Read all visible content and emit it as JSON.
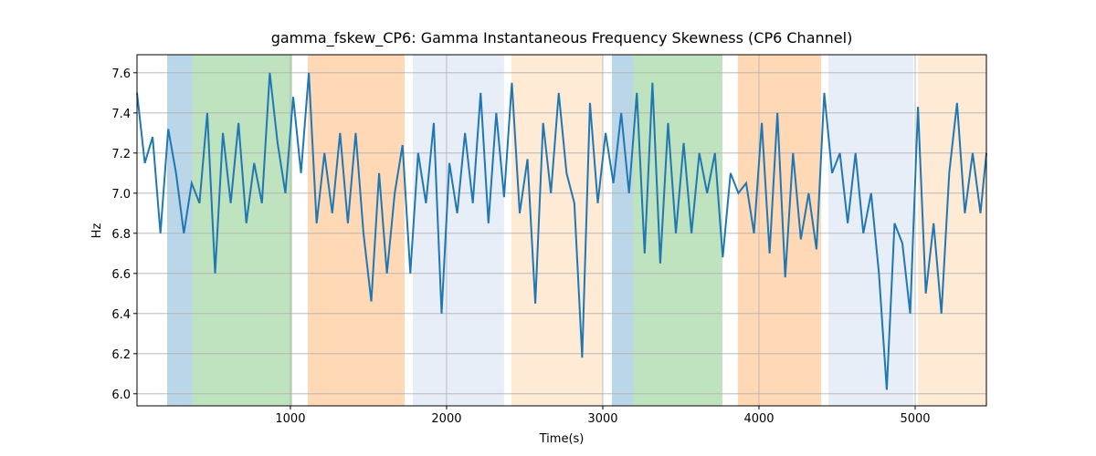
{
  "chart_data": {
    "type": "line",
    "title": "gamma_fskew_CP6: Gamma Instantaneous Frequency Skewness (CP6 Channel)",
    "x_label": "Time(s)",
    "y_label": "Hz",
    "x": [
      18,
      68,
      118,
      168,
      218,
      268,
      318,
      368,
      418,
      468,
      518,
      568,
      618,
      668,
      718,
      768,
      818,
      868,
      918,
      968,
      1018,
      1068,
      1118,
      1168,
      1218,
      1268,
      1318,
      1368,
      1418,
      1468,
      1518,
      1568,
      1618,
      1668,
      1718,
      1768,
      1818,
      1868,
      1918,
      1968,
      2018,
      2068,
      2118,
      2168,
      2218,
      2268,
      2318,
      2368,
      2418,
      2468,
      2518,
      2568,
      2618,
      2668,
      2718,
      2768,
      2818,
      2868,
      2918,
      2968,
      3018,
      3068,
      3118,
      3168,
      3218,
      3268,
      3318,
      3368,
      3418,
      3468,
      3518,
      3568,
      3618,
      3668,
      3718,
      3768,
      3818,
      3868,
      3918,
      3968,
      4018,
      4068,
      4118,
      4168,
      4218,
      4268,
      4318,
      4368,
      4418,
      4468,
      4518,
      4568,
      4618,
      4668,
      4718,
      4768,
      4818,
      4868,
      4918,
      4968,
      5018,
      5068,
      5118,
      5168,
      5218,
      5268,
      5318,
      5368,
      5418,
      5456
    ],
    "series": [
      {
        "name": "gamma_fskew_CP6",
        "color": "#1f77b4",
        "values": [
          7.5,
          7.15,
          7.28,
          6.8,
          7.32,
          7.1,
          6.8,
          7.05,
          6.95,
          7.4,
          6.6,
          7.3,
          6.95,
          7.35,
          6.85,
          7.15,
          6.95,
          7.6,
          7.25,
          7.0,
          7.48,
          7.1,
          7.6,
          6.85,
          7.2,
          6.9,
          7.3,
          6.85,
          7.3,
          6.8,
          6.46,
          7.1,
          6.6,
          7.0,
          7.24,
          6.6,
          7.2,
          6.95,
          7.35,
          6.4,
          7.15,
          6.9,
          7.3,
          6.95,
          7.5,
          6.85,
          7.4,
          6.98,
          7.55,
          6.9,
          7.17,
          6.45,
          7.35,
          7.0,
          7.5,
          7.1,
          6.95,
          6.18,
          7.45,
          6.95,
          7.3,
          7.05,
          7.4,
          7.0,
          7.5,
          6.7,
          7.55,
          6.65,
          7.35,
          6.8,
          7.25,
          6.8,
          7.2,
          7.0,
          7.2,
          6.68,
          7.1,
          7.0,
          7.05,
          6.8,
          7.35,
          6.7,
          7.4,
          6.58,
          7.2,
          6.77,
          7.0,
          6.72,
          7.5,
          7.1,
          7.2,
          6.85,
          7.2,
          6.8,
          7.0,
          6.6,
          6.02,
          6.85,
          6.75,
          6.4,
          7.43,
          6.5,
          6.85,
          6.4,
          7.1,
          7.45,
          6.9,
          7.2,
          6.9,
          7.2
        ]
      }
    ],
    "bands": [
      {
        "start": 211,
        "end": 374,
        "color": "rgba(31,119,180,0.3)"
      },
      {
        "start": 374,
        "end": 1012,
        "color": "rgba(44,160,44,0.3)"
      },
      {
        "start": 1111,
        "end": 1731,
        "color": "rgba(255,127,14,0.3)"
      },
      {
        "start": 1784,
        "end": 2368,
        "color": "rgba(174,199,232,0.3)"
      },
      {
        "start": 2415,
        "end": 3000,
        "color": "rgba(255,187,120,0.3)"
      },
      {
        "start": 3058,
        "end": 3193,
        "color": "rgba(31,119,180,0.3)"
      },
      {
        "start": 3193,
        "end": 3766,
        "color": "rgba(44,160,44,0.3)"
      },
      {
        "start": 3865,
        "end": 4398,
        "color": "rgba(255,127,14,0.3)"
      },
      {
        "start": 4444,
        "end": 4988,
        "color": "rgba(174,199,232,0.3)"
      },
      {
        "start": 5018,
        "end": 5456,
        "color": "rgba(255,187,120,0.3)"
      }
    ],
    "xlim": [
      18,
      5456
    ],
    "ylim": [
      5.94,
      7.69
    ],
    "xticks": [
      1000,
      2000,
      3000,
      4000,
      5000
    ],
    "yticks": [
      {
        "value": 6,
        "label": "6.0"
      },
      6.2,
      6.4,
      6.6,
      6.8,
      {
        "value": 7,
        "label": "7.0"
      },
      7.2,
      7.4,
      7.6
    ],
    "grid": true
  }
}
